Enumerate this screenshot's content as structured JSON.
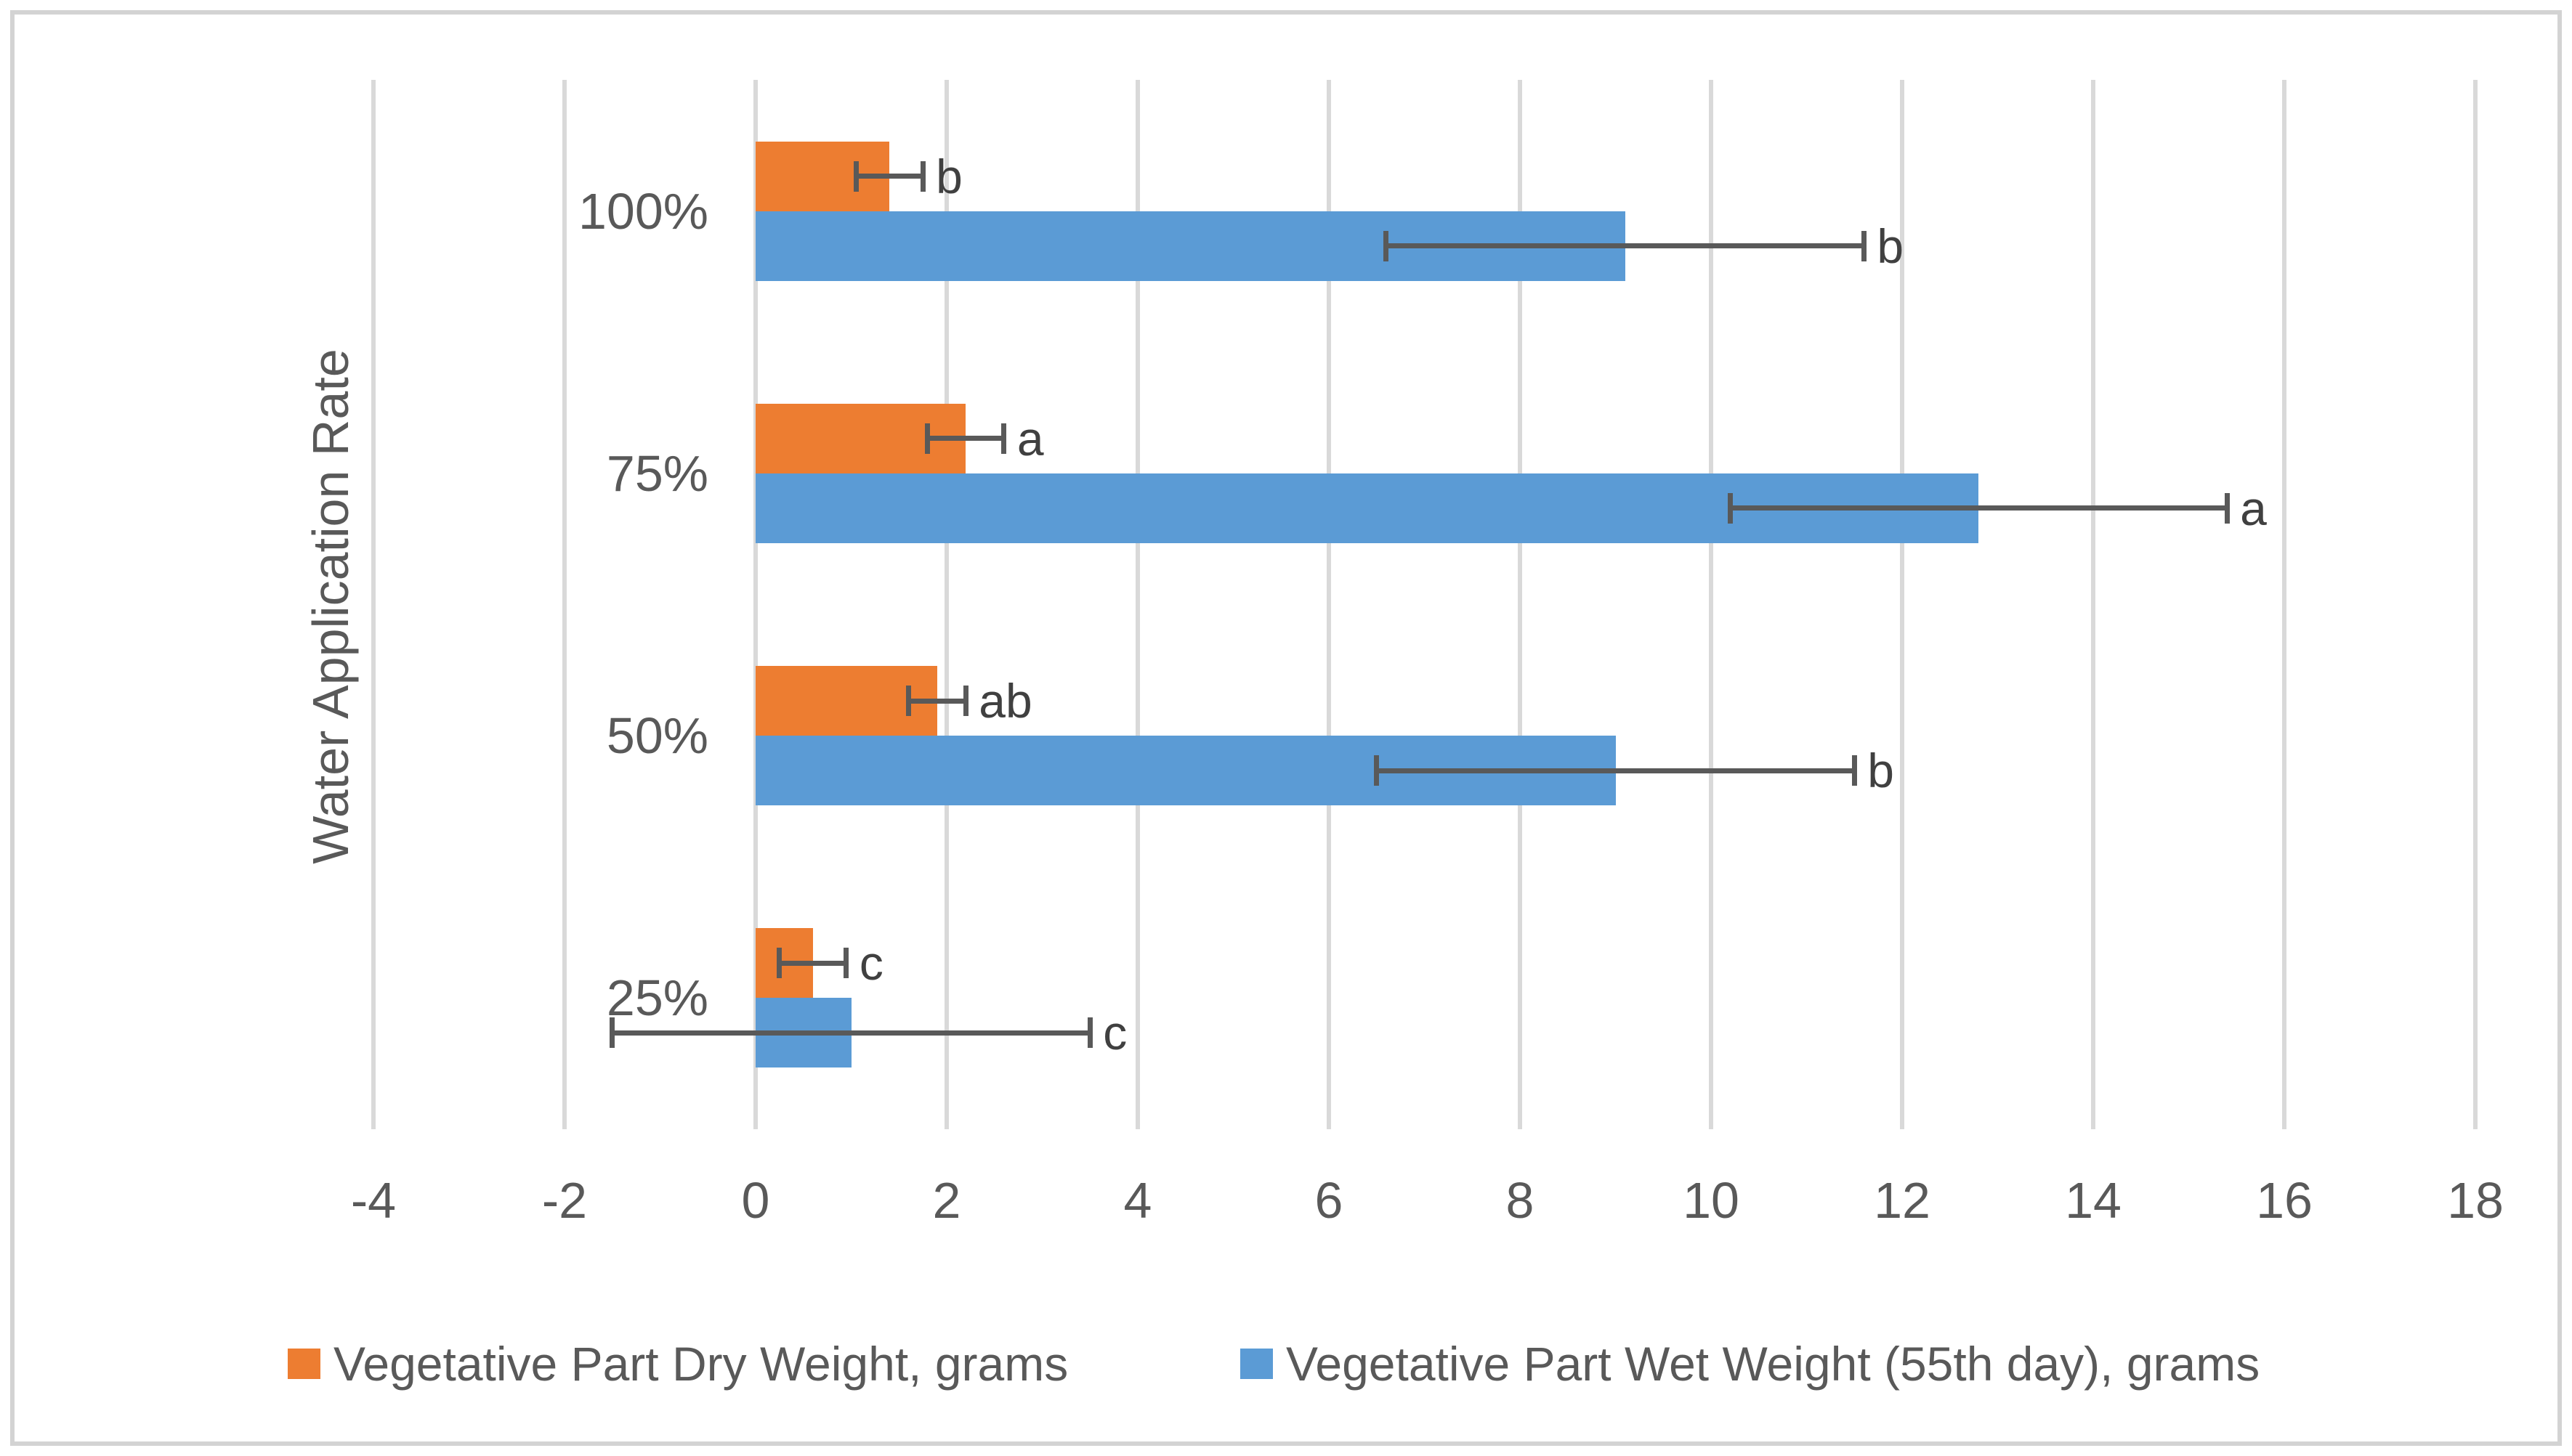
{
  "chart_data": {
    "type": "bar",
    "orientation": "horizontal",
    "title": "",
    "y_axis_title": "Water Application Rate",
    "categories": [
      "100%",
      "75%",
      "50%",
      "25%"
    ],
    "series": [
      {
        "name": "Vegetative Part Dry Weight, grams",
        "color": "#ED7D31",
        "values": [
          1.4,
          2.2,
          1.9,
          0.6
        ],
        "errors": [
          0.35,
          0.4,
          0.3,
          0.35
        ],
        "letters": [
          "b",
          "a",
          "ab",
          "c"
        ]
      },
      {
        "name": "Vegetative Part Wet Weight (55th day), grams",
        "color": "#5B9BD5",
        "values": [
          9.1,
          12.8,
          9.0,
          1.0
        ],
        "errors": [
          2.5,
          2.6,
          2.5,
          2.5
        ],
        "letters": [
          "b",
          "a",
          "b",
          "c"
        ]
      }
    ],
    "xlim": [
      -4,
      18
    ],
    "x_tick_step": 2,
    "x_tick_labels": [
      "-4",
      "-2",
      "0",
      "2",
      "4",
      "6",
      "8",
      "10",
      "12",
      "14",
      "16",
      "18"
    ],
    "grid": true,
    "legend_position": "bottom",
    "colors": {
      "gridline": "#D9D9D9",
      "axis_text": "#595959",
      "error_bar": "#595959",
      "letter": "#404040",
      "border": "#D3D3D3",
      "background": "#FFFFFF"
    }
  }
}
